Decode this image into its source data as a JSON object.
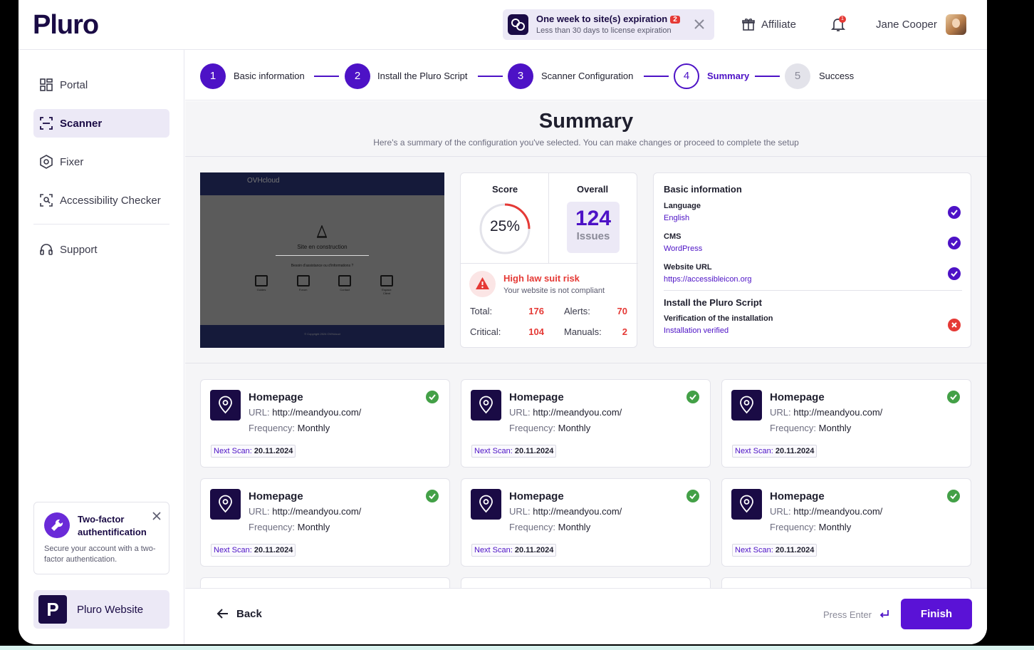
{
  "app": {
    "logo": "Pluro"
  },
  "header": {
    "expiry_title": "One week to site(s) expiration",
    "expiry_badge": "2",
    "expiry_sub": "Less than 30 days to license expiration",
    "affiliate": "Affiliate",
    "bell_count": "1",
    "user_name": "Jane Cooper"
  },
  "sidebar": {
    "items": [
      {
        "label": "Portal",
        "icon": "grid-icon"
      },
      {
        "label": "Scanner",
        "icon": "scan-icon"
      },
      {
        "label": "Fixer",
        "icon": "hexagon-icon"
      },
      {
        "label": "Accessibility Checker",
        "icon": "face-scan-icon"
      },
      {
        "label": "Support",
        "icon": "headset-icon"
      }
    ],
    "tfa_title": "Two-factor authentification",
    "tfa_text": "Secure your account with a two-factor authentication.",
    "site_logo": "P",
    "site_label": "Pluro Website"
  },
  "stepper": {
    "steps": [
      {
        "num": "1",
        "label": "Basic information"
      },
      {
        "num": "2",
        "label": "Install the Pluro Script"
      },
      {
        "num": "3",
        "label": "Scanner Configuration"
      },
      {
        "num": "4",
        "label": "Summary"
      },
      {
        "num": "5",
        "label": "Success"
      }
    ]
  },
  "summary": {
    "title": "Summary",
    "subtitle": "Here's a summary of the configuration you've selected. You can make changes or proceed to complete the setup"
  },
  "preview": {
    "brand": "OVHcloud",
    "title": "Site en construction",
    "question": "Besoin d'assistance ou d'informations ?",
    "links": [
      "Guides",
      "Forum",
      "Contact",
      "Espace Client"
    ],
    "footer": "© Copyright 2024 OVHcloud"
  },
  "score": {
    "score_label": "Score",
    "score_value": "25%",
    "score_pct": 25,
    "overall_label": "Overall",
    "issues_count": "124",
    "issues_label": "Issues",
    "risk_title": "High law suit risk",
    "risk_sub": "Your website is not compliant",
    "total_label": "Total:",
    "total": "176",
    "alerts_label": "Alerts:",
    "alerts": "70",
    "critical_label": "Critical:",
    "critical": "104",
    "manuals_label": "Manuals:",
    "manuals": "2"
  },
  "info": {
    "basic_head": "Basic information",
    "language_label": "Language",
    "language": "English",
    "cms_label": "CMS",
    "cms": "WordPress",
    "url_label": "Website URL",
    "url": "https://accessibleicon.org",
    "script_head": "Install the Pluro Script",
    "verify_label": "Verification of the installation",
    "verify": "Installation verified"
  },
  "pages": [
    {
      "title": "Homepage",
      "url_label": "URL:",
      "url": "http://meandyou.com/",
      "freq_label": "Frequency:",
      "freq": "Monthly",
      "next_label": "Next Scan:",
      "next": "20.11.2024"
    },
    {
      "title": "Homepage",
      "url_label": "URL:",
      "url": "http://meandyou.com/",
      "freq_label": "Frequency:",
      "freq": "Monthly",
      "next_label": "Next Scan:",
      "next": "20.11.2024"
    },
    {
      "title": "Homepage",
      "url_label": "URL:",
      "url": "http://meandyou.com/",
      "freq_label": "Frequency:",
      "freq": "Monthly",
      "next_label": "Next Scan:",
      "next": "20.11.2024"
    },
    {
      "title": "Homepage",
      "url_label": "URL:",
      "url": "http://meandyou.com/",
      "freq_label": "Frequency:",
      "freq": "Monthly",
      "next_label": "Next Scan:",
      "next": "20.11.2024"
    },
    {
      "title": "Homepage",
      "url_label": "URL:",
      "url": "http://meandyou.com/",
      "freq_label": "Frequency:",
      "freq": "Monthly",
      "next_label": "Next Scan:",
      "next": "20.11.2024"
    },
    {
      "title": "Homepage",
      "url_label": "URL:",
      "url": "http://meandyou.com/",
      "freq_label": "Frequency:",
      "freq": "Monthly",
      "next_label": "Next Scan:",
      "next": "20.11.2024"
    }
  ],
  "footer": {
    "back": "Back",
    "press_enter": "Press Enter",
    "finish": "Finish"
  },
  "colors": {
    "brand": "#1a0b45",
    "accent": "#4d12c6",
    "danger": "#e53935",
    "success": "#43a047"
  }
}
